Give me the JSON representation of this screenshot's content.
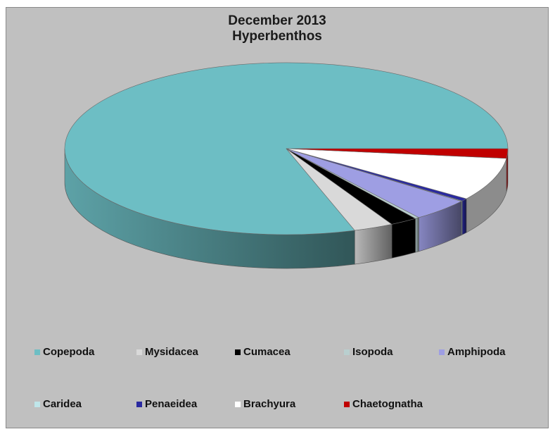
{
  "chart_data": {
    "type": "pie",
    "title": [
      "December 2013",
      "Hyperbenthos"
    ],
    "categories": [
      "Copepoda",
      "Mysidacea",
      "Cumacea",
      "Isopoda",
      "Amphipoda",
      "Caridea",
      "Penaeidea",
      "Brachyura",
      "Chaetognatha"
    ],
    "values": [
      80.0,
      2.9,
      2.0,
      0.3,
      4.3,
      0.1,
      0.5,
      8.1,
      1.8
    ],
    "colors": [
      "#6dbec4",
      "#d9d9d9",
      "#000000",
      "#b9cfcf",
      "#9e9ee3",
      "#bfe6ea",
      "#2a2aa0",
      "#ffffff",
      "#c00000"
    ],
    "legend_position": "bottom",
    "style": "3d"
  }
}
